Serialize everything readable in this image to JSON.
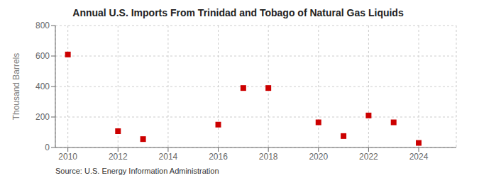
{
  "chart_data": {
    "type": "scatter",
    "title": "Annual U.S. Imports From Trinidad and Tobago of Natural Gas Liquids",
    "ylabel": "Thousand Barrels",
    "annotation": "Source: U.S. Energy Information Administration",
    "x": [
      2010,
      2012,
      2013,
      2016,
      2017,
      2018,
      2020,
      2021,
      2022,
      2023,
      2024
    ],
    "values": [
      610,
      107,
      55,
      150,
      390,
      390,
      165,
      75,
      210,
      165,
      30
    ],
    "color": "#cc0000",
    "marker": "square",
    "xlim": [
      2009.5,
      2025.5
    ],
    "xticks": [
      2010,
      2012,
      2014,
      2016,
      2018,
      2020,
      2022,
      2024
    ],
    "ylim": [
      0,
      800
    ],
    "yticks": [
      0,
      200,
      400,
      600,
      800
    ],
    "grid": true
  }
}
